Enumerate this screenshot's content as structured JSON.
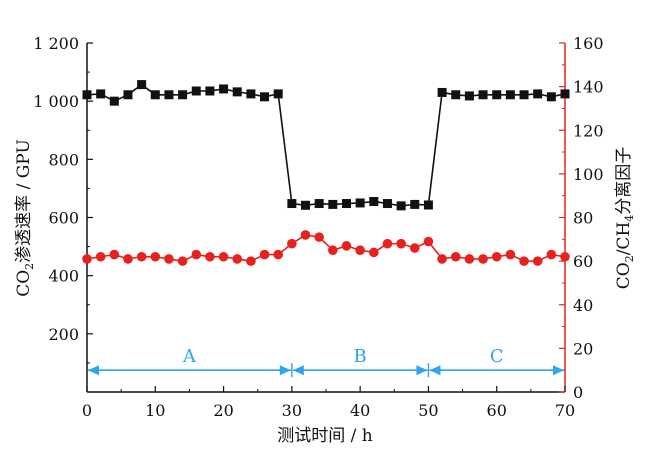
{
  "chart_data": {
    "type": "line",
    "x_label": "测试时间 / h",
    "y_left_label": {
      "main": "CO",
      "sub": "2",
      "rest": "渗透速率 / GPU"
    },
    "y_right_label": {
      "p1": "CO",
      "s1": "2",
      "p2": "/CH",
      "s2": "4",
      "p3": "分离因子"
    },
    "xlim": [
      0,
      70
    ],
    "ylim_left": [
      0,
      1200
    ],
    "ylim_right": [
      0,
      160
    ],
    "x_ticks": [
      "0",
      "10",
      "20",
      "30",
      "40",
      "50",
      "60",
      "70"
    ],
    "x_tick_values": [
      0,
      10,
      20,
      30,
      40,
      50,
      60,
      70
    ],
    "y_left_ticks": [
      "200",
      "400",
      "600",
      "800",
      "1 000",
      "1 200"
    ],
    "y_left_tick_values": [
      200,
      400,
      600,
      800,
      1000,
      1200
    ],
    "y_right_ticks": [
      "0",
      "20",
      "40",
      "60",
      "80",
      "100",
      "120",
      "140",
      "160"
    ],
    "y_right_tick_values": [
      0,
      20,
      40,
      60,
      80,
      100,
      120,
      140,
      160
    ],
    "colors": {
      "permeance": "#111111",
      "selectivity": "#e8201e",
      "regions": "#2aa7e8",
      "right_axis": "#e8201e"
    },
    "series": [
      {
        "name": "CO2渗透速率",
        "axis": "left",
        "marker": "square",
        "x": [
          0,
          2,
          4,
          6,
          8,
          10,
          12,
          14,
          16,
          18,
          20,
          22,
          24,
          26,
          28,
          30,
          32,
          34,
          36,
          38,
          40,
          42,
          44,
          46,
          48,
          50,
          52,
          54,
          56,
          58,
          60,
          62,
          64,
          66,
          68,
          70
        ],
        "values": [
          1022,
          1025,
          1000,
          1022,
          1057,
          1022,
          1022,
          1022,
          1035,
          1035,
          1042,
          1032,
          1025,
          1015,
          1025,
          648,
          642,
          648,
          645,
          648,
          650,
          655,
          648,
          640,
          645,
          643,
          1030,
          1022,
          1018,
          1022,
          1022,
          1022,
          1022,
          1025,
          1015,
          1025
        ]
      },
      {
        "name": "CO2/CH4分离因子",
        "axis": "right",
        "marker": "circle",
        "x": [
          0,
          2,
          4,
          6,
          8,
          10,
          12,
          14,
          16,
          18,
          20,
          22,
          24,
          26,
          28,
          30,
          32,
          34,
          36,
          38,
          40,
          42,
          44,
          46,
          48,
          50,
          52,
          54,
          56,
          58,
          60,
          62,
          64,
          66,
          68,
          70
        ],
        "values": [
          61,
          62,
          63,
          61,
          62,
          62,
          61,
          60,
          63,
          62,
          62,
          61,
          60,
          63,
          63,
          68,
          72,
          71,
          65,
          67,
          65,
          64,
          68,
          68,
          66,
          69,
          61,
          62,
          61,
          61,
          62,
          63,
          60,
          60,
          63,
          62
        ]
      }
    ],
    "regions": [
      {
        "label": "A",
        "x_start": 0,
        "x_end": 30
      },
      {
        "label": "B",
        "x_start": 30,
        "x_end": 50
      },
      {
        "label": "C",
        "x_start": 50,
        "x_end": 70
      }
    ],
    "region_arrow_value_left": 75
  }
}
